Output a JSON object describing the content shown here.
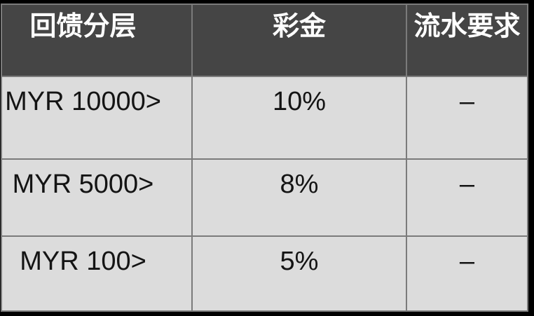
{
  "table": {
    "columns": [
      {
        "label": "回馈分层"
      },
      {
        "label": "彩金"
      },
      {
        "label": "流水要求"
      }
    ],
    "rows": [
      {
        "tier": "MYR 10000>",
        "bonus": "10%",
        "turnover": "–"
      },
      {
        "tier": "MYR 5000>",
        "bonus": "8%",
        "turnover": "–"
      },
      {
        "tier": "MYR 100>",
        "bonus": "5%",
        "turnover": "–"
      }
    ],
    "colors": {
      "header_bg": "#454545",
      "header_text": "#ffffff",
      "body_bg": "#dcdcdc",
      "body_text": "#141414",
      "border": "#7b7b7b",
      "outer_bg": "#000000"
    }
  }
}
